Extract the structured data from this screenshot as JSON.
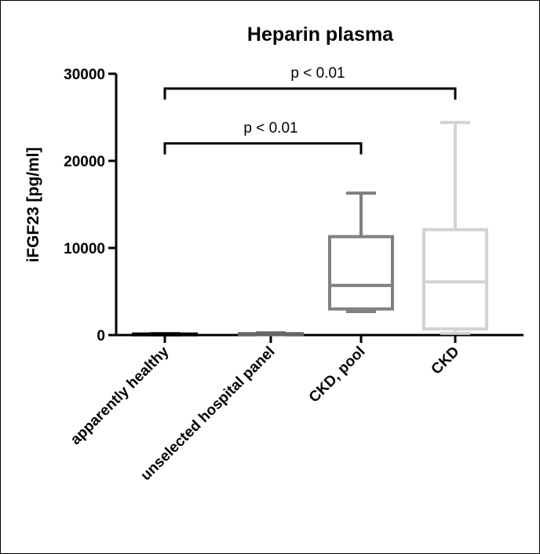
{
  "chart_data": {
    "type": "box",
    "title": "Heparin plasma",
    "xlabel": "",
    "ylabel": "iFGF23 [pg/ml]",
    "ylim": [
      0,
      30000
    ],
    "yticks": [
      0,
      10000,
      20000,
      30000
    ],
    "ytick_labels": [
      "0",
      "10000",
      "20000",
      "30000"
    ],
    "categories": [
      "apparently healthy",
      "unselected hospital panel",
      "CKD, pool",
      "CKD"
    ],
    "colors": [
      "#000000",
      "#666666",
      "#808080",
      "#d3d3d3"
    ],
    "boxes": [
      {
        "min": 30,
        "q1": 50,
        "median": 80,
        "q3": 120,
        "max": 160
      },
      {
        "min": 40,
        "q1": 70,
        "median": 120,
        "q3": 160,
        "max": 250
      },
      {
        "min": 2700,
        "q1": 3000,
        "median": 5700,
        "q3": 11300,
        "max": 16300
      },
      {
        "min": 200,
        "q1": 700,
        "median": 6100,
        "q3": 12100,
        "max": 24400
      }
    ],
    "annotations": [
      {
        "text": "p < 0.01",
        "from": 0,
        "to": 3,
        "y": 28300
      },
      {
        "text": "p < 0.01",
        "from": 0,
        "to": 2,
        "y": 22000
      }
    ]
  }
}
